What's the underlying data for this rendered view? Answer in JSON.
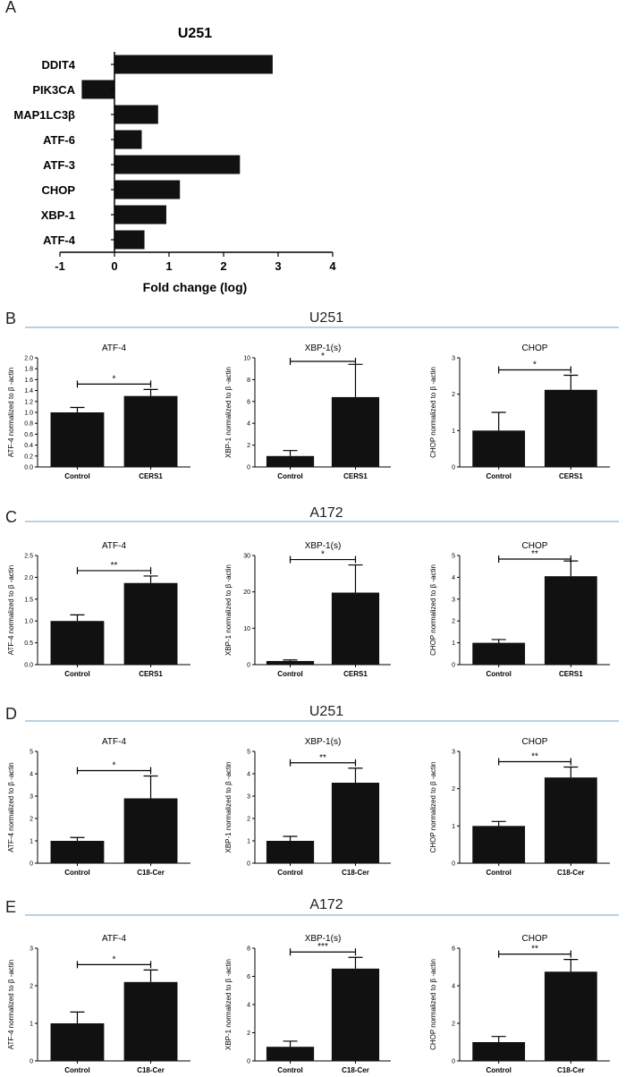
{
  "panel_labels": [
    "A",
    "B",
    "C",
    "D",
    "E"
  ],
  "row_titles": [
    "U251",
    "A172",
    "U251",
    "A172"
  ],
  "chart_data": [
    {
      "id": "A",
      "type": "bar",
      "orientation": "horizontal",
      "title": "U251",
      "categories": [
        "DDIT4",
        "PIK3CA",
        "MAP1LC3β",
        "ATF-6",
        "ATF-3",
        "CHOP",
        "XBP-1",
        "ATF-4"
      ],
      "values": [
        2.9,
        -0.6,
        0.8,
        0.5,
        2.3,
        1.2,
        0.95,
        0.55
      ],
      "xlabel": "Fold change (log)",
      "xlim": [
        -1,
        4
      ],
      "xticks": [
        "-1",
        "0",
        "1",
        "2",
        "3",
        "4"
      ]
    },
    {
      "id": "B",
      "row_title": "U251",
      "type": "bar",
      "subplots": [
        {
          "title": "ATF-4",
          "ylabel": "ATF-4 normalized to β -actin",
          "categories": [
            "Control",
            "CERS1"
          ],
          "values": [
            1.0,
            1.3
          ],
          "errors": [
            0.09,
            0.12
          ],
          "ylim": [
            0,
            2.0
          ],
          "yticks": [
            "0.0",
            "0.2",
            "0.4",
            "0.6",
            "0.8",
            "1.0",
            "1.2",
            "1.4",
            "1.6",
            "1.8",
            "2.0"
          ],
          "significance": "*"
        },
        {
          "title": "XBP-1(s)",
          "ylabel": "XBP-1 normalized to β -actin",
          "categories": [
            "Control",
            "CERS1"
          ],
          "values": [
            1.0,
            6.4
          ],
          "errors": [
            0.5,
            3.0
          ],
          "ylim": [
            0,
            10
          ],
          "yticks": [
            "0",
            "2",
            "4",
            "6",
            "8",
            "10"
          ],
          "significance": "*"
        },
        {
          "title": "CHOP",
          "ylabel": "CHOP normalized to β -actin",
          "categories": [
            "Control",
            "CERS1"
          ],
          "values": [
            1.0,
            2.12
          ],
          "errors": [
            0.5,
            0.4
          ],
          "ylim": [
            0,
            3
          ],
          "yticks": [
            "0",
            "1",
            "2",
            "3"
          ],
          "significance": "*"
        }
      ]
    },
    {
      "id": "C",
      "row_title": "A172",
      "type": "bar",
      "subplots": [
        {
          "title": "ATF-4",
          "ylabel": "ATF-4 normalized to β -actin",
          "categories": [
            "Control",
            "CERS1"
          ],
          "values": [
            1.0,
            1.87
          ],
          "errors": [
            0.14,
            0.16
          ],
          "ylim": [
            0,
            2.5
          ],
          "yticks": [
            "0.0",
            "0.5",
            "1.0",
            "1.5",
            "2.0",
            "2.5"
          ],
          "significance": "**"
        },
        {
          "title": "XBP-1(s)",
          "ylabel": "XBP-1 normalized to β -actin",
          "categories": [
            "Control",
            "CERS1"
          ],
          "values": [
            1.0,
            19.8
          ],
          "errors": [
            0.3,
            7.6
          ],
          "ylim": [
            0,
            30
          ],
          "yticks": [
            "0",
            "10",
            "20",
            "30"
          ],
          "significance": "*"
        },
        {
          "title": "CHOP",
          "ylabel": "CHOP normalized to β -actin",
          "categories": [
            "Control",
            "CERS1"
          ],
          "values": [
            1.0,
            4.05
          ],
          "errors": [
            0.15,
            0.7
          ],
          "ylim": [
            0,
            5
          ],
          "yticks": [
            "0",
            "1",
            "2",
            "3",
            "4",
            "5"
          ],
          "significance": "**"
        }
      ]
    },
    {
      "id": "D",
      "row_title": "U251",
      "type": "bar",
      "subplots": [
        {
          "title": "ATF-4",
          "ylabel": "ATF-4 normalized to β -actin",
          "categories": [
            "Control",
            "C18-Cer"
          ],
          "values": [
            1.0,
            2.9
          ],
          "errors": [
            0.15,
            1.0
          ],
          "ylim": [
            0,
            5
          ],
          "yticks": [
            "0",
            "1",
            "2",
            "3",
            "4",
            "5"
          ],
          "significance": "*"
        },
        {
          "title": "XBP-1(s)",
          "ylabel": "XBP-1 normalized to β -actin",
          "categories": [
            "Control",
            "C18-Cer"
          ],
          "values": [
            1.0,
            3.6
          ],
          "errors": [
            0.2,
            0.65
          ],
          "ylim": [
            0,
            5
          ],
          "yticks": [
            "0",
            "1",
            "2",
            "3",
            "4",
            "5"
          ],
          "significance": "**"
        },
        {
          "title": "CHOP",
          "ylabel": "CHOP normalized to β -actin",
          "categories": [
            "Control",
            "C18-Cer"
          ],
          "values": [
            1.0,
            2.3
          ],
          "errors": [
            0.12,
            0.28
          ],
          "ylim": [
            0,
            3
          ],
          "yticks": [
            "0",
            "1",
            "2",
            "3"
          ],
          "significance": "**"
        }
      ]
    },
    {
      "id": "E",
      "row_title": "A172",
      "type": "bar",
      "subplots": [
        {
          "title": "ATF-4",
          "ylabel": "ATF-4 normalized to β -actin",
          "categories": [
            "Control",
            "C18-Cer"
          ],
          "values": [
            1.0,
            2.1
          ],
          "errors": [
            0.3,
            0.32
          ],
          "ylim": [
            0,
            3
          ],
          "yticks": [
            "0",
            "1",
            "2",
            "3"
          ],
          "significance": "*"
        },
        {
          "title": "XBP-1(s)",
          "ylabel": "XBP-1 normalized to β -actin",
          "categories": [
            "Control",
            "C18-Cer"
          ],
          "values": [
            1.0,
            6.55
          ],
          "errors": [
            0.4,
            0.8
          ],
          "ylim": [
            0,
            8
          ],
          "yticks": [
            "0",
            "2",
            "4",
            "6",
            "8"
          ],
          "significance": "***"
        },
        {
          "title": "CHOP",
          "ylabel": "CHOP normalized to β -actin",
          "categories": [
            "Control",
            "C18-Cer"
          ],
          "values": [
            1.0,
            4.75
          ],
          "errors": [
            0.3,
            0.65
          ],
          "ylim": [
            0,
            6
          ],
          "yticks": [
            "0",
            "2",
            "4",
            "6"
          ],
          "significance": "**"
        }
      ]
    }
  ],
  "colors": {
    "bar": "#111111",
    "axis": "#000000",
    "separator": "#9fc3de",
    "text": "#222222"
  }
}
